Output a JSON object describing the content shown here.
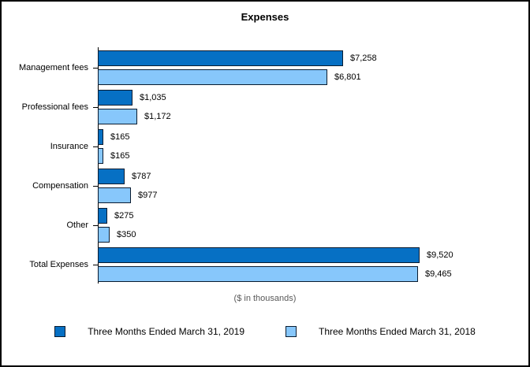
{
  "chart_data": {
    "type": "bar",
    "orientation": "horizontal",
    "title": "Expenses",
    "footnote": "($ in thousands)",
    "categories": [
      "Management fees",
      "Professional fees",
      "Insurance",
      "Compensation",
      "Other",
      "Total Expenses"
    ],
    "series": [
      {
        "name": "Three Months Ended March 31, 2019",
        "color": "#0670c4",
        "values": [
          7258,
          1035,
          165,
          787,
          275,
          9520
        ],
        "labels": [
          "$7,258",
          "$1,035",
          "$165",
          "$787",
          "$275",
          "$9,520"
        ]
      },
      {
        "name": "Three Months Ended March 31, 2018",
        "color": "#87c7fb",
        "values": [
          6801,
          1172,
          165,
          977,
          350,
          9465
        ],
        "labels": [
          "$6,801",
          "$1,172",
          "$165",
          "$977",
          "$350",
          "$9,465"
        ]
      }
    ],
    "bar_border_color": "#0a1c30",
    "xlim": [
      0,
      9520
    ],
    "legend_position": "bottom",
    "grid": "off",
    "value_prefix": "$"
  }
}
